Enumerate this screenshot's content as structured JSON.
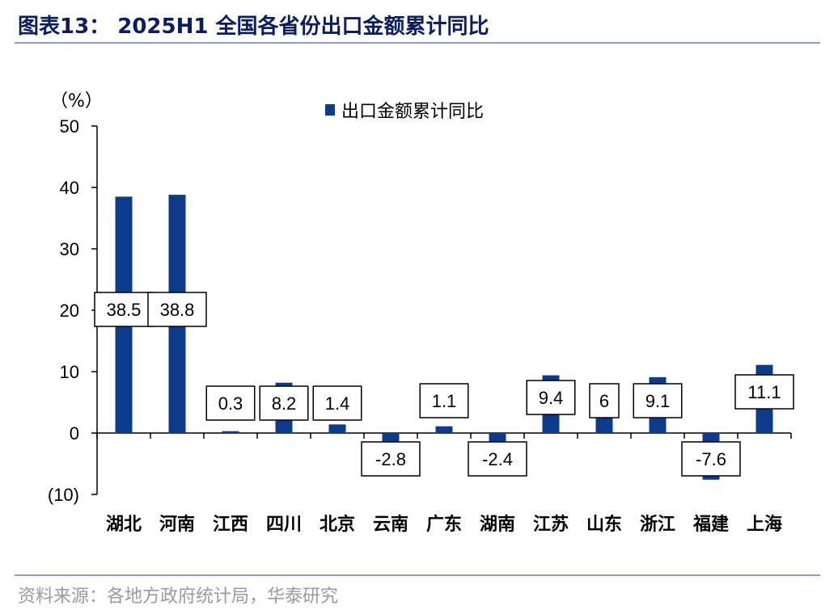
{
  "figure": {
    "title": "图表13： 2025H1 全国各省份出口金额累计同比",
    "source": "资料来源：各地方政府统计局，华泰研究"
  },
  "chart_data": {
    "type": "bar",
    "unit_label": "（%）",
    "categories": [
      "湖北",
      "河南",
      "江西",
      "四川",
      "北京",
      "云南",
      "广东",
      "湖南",
      "江苏",
      "山东",
      "浙江",
      "福建",
      "上海"
    ],
    "series": [
      {
        "name": "出口金额累计同比",
        "values": [
          38.5,
          38.8,
          0.3,
          8.2,
          1.4,
          -2.8,
          1.1,
          -2.4,
          9.4,
          6,
          9.1,
          -7.6,
          11.1
        ],
        "labels": [
          "38.5",
          "38.8",
          "0.3",
          "8.2",
          "1.4",
          "-2.8",
          "1.1",
          "-2.4",
          "9.4",
          "6",
          "9.1",
          "-7.6",
          "11.1"
        ]
      }
    ],
    "ylim": [
      -10,
      50
    ],
    "yticks": [
      -10,
      0,
      10,
      20,
      30,
      40,
      50
    ],
    "ytick_labels": [
      "(10)",
      "0",
      "10",
      "20",
      "30",
      "40",
      "50"
    ],
    "legend_position": "top",
    "grid": false,
    "colors": {
      "bar": "#0d3b8c",
      "axis": "#000000"
    }
  }
}
